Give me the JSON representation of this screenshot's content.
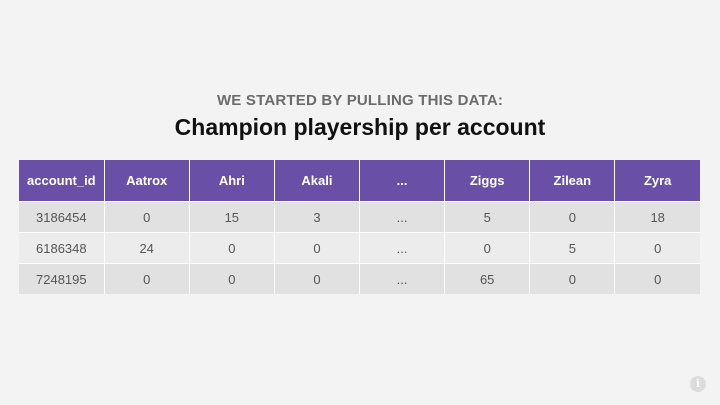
{
  "slide": {
    "subtitle": "WE STARTED BY PULLING THIS DATA:",
    "title": "Champion playership per account"
  },
  "table": {
    "headers": [
      "account_id",
      "Aatrox",
      "Ahri",
      "Akali",
      "...",
      "Ziggs",
      "Zilean",
      "Zyra"
    ],
    "rows": [
      [
        "3186454",
        "0",
        "15",
        "3",
        "...",
        "5",
        "0",
        "18"
      ],
      [
        "6186348",
        "24",
        "0",
        "0",
        "...",
        "0",
        "5",
        "0"
      ],
      [
        "7248195",
        "0",
        "0",
        "0",
        "...",
        "65",
        "0",
        "0"
      ]
    ]
  },
  "info_icon": {
    "icon": "info-icon",
    "glyph": "i"
  },
  "colors": {
    "header_bg": "#6a4fa6",
    "header_text": "#ffffff",
    "row_odd": "#e1e1e1",
    "row_even": "#ececec",
    "background": "#f3f3f3"
  }
}
